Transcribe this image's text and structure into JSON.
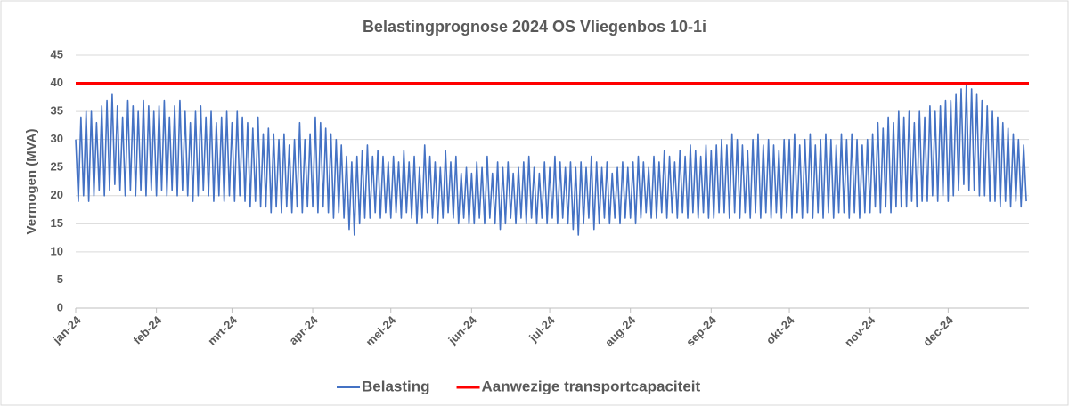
{
  "chart_data": {
    "type": "line",
    "title": "Belastingprognose 2024 OS Vliegenbos 10-1i",
    "ylabel": "Vermogen (MVA)",
    "xlim": [
      0,
      366
    ],
    "xticks": [
      {
        "value": 0,
        "label": "jan-24"
      },
      {
        "value": 31,
        "label": "feb-24"
      },
      {
        "value": 60,
        "label": "mrt-24"
      },
      {
        "value": 91,
        "label": "apr-24"
      },
      {
        "value": 121,
        "label": "mei-24"
      },
      {
        "value": 152,
        "label": "jun-24"
      },
      {
        "value": 182,
        "label": "jul-24"
      },
      {
        "value": 213,
        "label": "aug-24"
      },
      {
        "value": 244,
        "label": "sep-24"
      },
      {
        "value": 274,
        "label": "okt-24"
      },
      {
        "value": 305,
        "label": "nov-24"
      },
      {
        "value": 335,
        "label": "dec-24"
      }
    ],
    "ylim": [
      0,
      45
    ],
    "yticks": [
      0,
      5,
      10,
      15,
      20,
      25,
      30,
      35,
      40,
      45
    ],
    "grid": true,
    "legend": "bottom",
    "series": [
      {
        "name": "Belasting",
        "color": "#4472c4",
        "x": [
          0,
          1,
          2,
          3,
          4,
          5,
          6,
          7,
          8,
          9,
          10,
          11,
          12,
          13,
          14,
          15,
          16,
          17,
          18,
          19,
          20,
          21,
          22,
          23,
          24,
          25,
          26,
          27,
          28,
          29,
          30,
          31,
          32,
          33,
          34,
          35,
          36,
          37,
          38,
          39,
          40,
          41,
          42,
          43,
          44,
          45,
          46,
          47,
          48,
          49,
          50,
          51,
          52,
          53,
          54,
          55,
          56,
          57,
          58,
          59,
          60,
          61,
          62,
          63,
          64,
          65,
          66,
          67,
          68,
          69,
          70,
          71,
          72,
          73,
          74,
          75,
          76,
          77,
          78,
          79,
          80,
          81,
          82,
          83,
          84,
          85,
          86,
          87,
          88,
          89,
          90,
          91,
          92,
          93,
          94,
          95,
          96,
          97,
          98,
          99,
          100,
          101,
          102,
          103,
          104,
          105,
          106,
          107,
          108,
          109,
          110,
          111,
          112,
          113,
          114,
          115,
          116,
          117,
          118,
          119,
          120,
          121,
          122,
          123,
          124,
          125,
          126,
          127,
          128,
          129,
          130,
          131,
          132,
          133,
          134,
          135,
          136,
          137,
          138,
          139,
          140,
          141,
          142,
          143,
          144,
          145,
          146,
          147,
          148,
          149,
          150,
          151,
          152,
          153,
          154,
          155,
          156,
          157,
          158,
          159,
          160,
          161,
          162,
          163,
          164,
          165,
          166,
          167,
          168,
          169,
          170,
          171,
          172,
          173,
          174,
          175,
          176,
          177,
          178,
          179,
          180,
          181,
          182,
          183,
          184,
          185,
          186,
          187,
          188,
          189,
          190,
          191,
          192,
          193,
          194,
          195,
          196,
          197,
          198,
          199,
          200,
          201,
          202,
          203,
          204,
          205,
          206,
          207,
          208,
          209,
          210,
          211,
          212,
          213,
          214,
          215,
          216,
          217,
          218,
          219,
          220,
          221,
          222,
          223,
          224,
          225,
          226,
          227,
          228,
          229,
          230,
          231,
          232,
          233,
          234,
          235,
          236,
          237,
          238,
          239,
          240,
          241,
          242,
          243,
          244,
          245,
          246,
          247,
          248,
          249,
          250,
          251,
          252,
          253,
          254,
          255,
          256,
          257,
          258,
          259,
          260,
          261,
          262,
          263,
          264,
          265,
          266,
          267,
          268,
          269,
          270,
          271,
          272,
          273,
          274,
          275,
          276,
          277,
          278,
          279,
          280,
          281,
          282,
          283,
          284,
          285,
          286,
          287,
          288,
          289,
          290,
          291,
          292,
          293,
          294,
          295,
          296,
          297,
          298,
          299,
          300,
          301,
          302,
          303,
          304,
          305,
          306,
          307,
          308,
          309,
          310,
          311,
          312,
          313,
          314,
          315,
          316,
          317,
          318,
          319,
          320,
          321,
          322,
          323,
          324,
          325,
          326,
          327,
          328,
          329,
          330,
          331,
          332,
          333,
          334,
          335,
          336,
          337,
          338,
          339,
          340,
          341,
          342,
          343,
          344,
          345,
          346,
          347,
          348,
          349,
          350,
          351,
          352,
          353,
          354,
          355,
          356,
          357,
          358,
          359,
          360,
          361,
          362,
          363,
          364,
          365
        ],
        "values": [
          30,
          19,
          34,
          20,
          35,
          19,
          35,
          20,
          33,
          21,
          36,
          20,
          37,
          21,
          38,
          22,
          36,
          21,
          34,
          20,
          37,
          21,
          36,
          20,
          35,
          21,
          37,
          20,
          36,
          21,
          35,
          20,
          36,
          21,
          37,
          20,
          34,
          21,
          36,
          20,
          37,
          21,
          35,
          20,
          33,
          19,
          35,
          20,
          36,
          21,
          34,
          20,
          35,
          19,
          33,
          20,
          34,
          19,
          35,
          20,
          33,
          19,
          35,
          20,
          34,
          19,
          33,
          18,
          32,
          19,
          34,
          18,
          31,
          18,
          32,
          17,
          31,
          18,
          30,
          17,
          31,
          18,
          29,
          17,
          30,
          18,
          33,
          17,
          30,
          18,
          31,
          18,
          34,
          17,
          33,
          18,
          32,
          17,
          31,
          16,
          30,
          17,
          29,
          16,
          27,
          14,
          26,
          13,
          27,
          15,
          28,
          16,
          29,
          16,
          27,
          17,
          28,
          16,
          27,
          17,
          26,
          16,
          27,
          17,
          26,
          16,
          28,
          17,
          26,
          16,
          27,
          15,
          25,
          16,
          29,
          17,
          27,
          16,
          26,
          15,
          25,
          16,
          28,
          17,
          26,
          16,
          27,
          15,
          24,
          16,
          25,
          15,
          24,
          15,
          26,
          16,
          25,
          15,
          27,
          16,
          24,
          15,
          26,
          14,
          25,
          15,
          26,
          16,
          24,
          15,
          25,
          16,
          26,
          15,
          27,
          16,
          25,
          15,
          24,
          16,
          26,
          15,
          25,
          16,
          27,
          15,
          26,
          16,
          25,
          15,
          26,
          14,
          25,
          13,
          26,
          15,
          25,
          16,
          27,
          14,
          26,
          15,
          25,
          16,
          26,
          15,
          24,
          16,
          25,
          15,
          26,
          16,
          25,
          16,
          26,
          15,
          27,
          16,
          26,
          17,
          25,
          16,
          27,
          16,
          26,
          17,
          28,
          16,
          27,
          17,
          26,
          16,
          28,
          17,
          27,
          16,
          29,
          17,
          28,
          16,
          27,
          17,
          29,
          16,
          28,
          16,
          29,
          17,
          30,
          17,
          29,
          16,
          31,
          17,
          30,
          16,
          29,
          17,
          28,
          16,
          30,
          17,
          31,
          16,
          29,
          17,
          30,
          16,
          29,
          17,
          28,
          16,
          30,
          17,
          30,
          16,
          31,
          17,
          29,
          16,
          30,
          17,
          31,
          16,
          29,
          17,
          30,
          16,
          31,
          17,
          30,
          16,
          29,
          17,
          31,
          17,
          30,
          16,
          31,
          17,
          30,
          16,
          29,
          17,
          30,
          17,
          31,
          18,
          33,
          17,
          32,
          18,
          34,
          17,
          33,
          18,
          35,
          18,
          34,
          18,
          35,
          19,
          33,
          18,
          35,
          19,
          34,
          19,
          36,
          20,
          35,
          19,
          36,
          20,
          37,
          19,
          37,
          20,
          38,
          21,
          39,
          22,
          40,
          21,
          39,
          21,
          38,
          20,
          37,
          20,
          36,
          19,
          35,
          19,
          34,
          18,
          33,
          19,
          32,
          18,
          31,
          19,
          30,
          18,
          29,
          19
        ]
      },
      {
        "name": "Aanwezige transportcapaciteit",
        "color": "#ff0000",
        "x": [
          0,
          366
        ],
        "values": [
          40,
          40
        ]
      }
    ]
  }
}
